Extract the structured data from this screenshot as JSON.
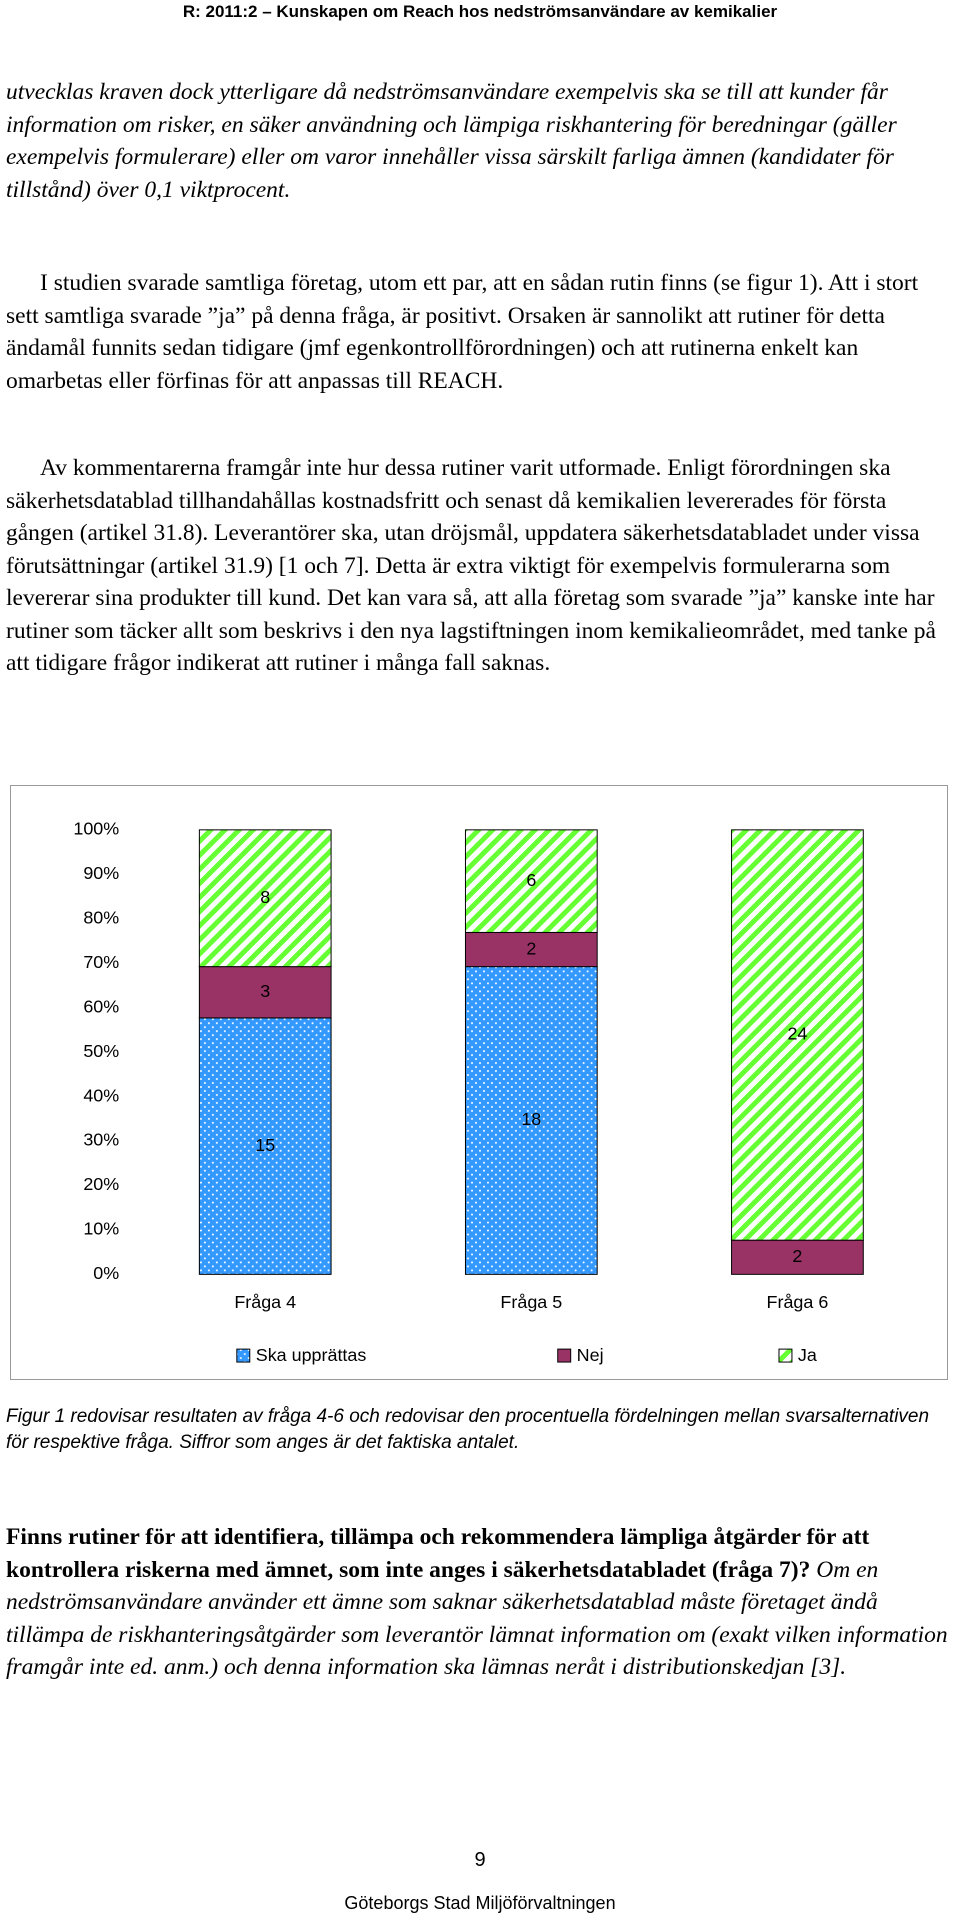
{
  "header": "R: 2011:2 – Kunskapen om Reach hos nedströmsanvändare av kemikalier",
  "paragraphs": [
    "utvecklas kraven dock ytterligare då nedströmsanvändare exempelvis ska se till att kunder får information om risker, en säker användning och lämpiga riskhantering för beredningar (gäller exempelvis formulerare) eller om varor innehåller vissa särskilt farliga ämnen (kandidater för tillstånd) över 0,1 viktprocent.",
    "I studien svarade samtliga företag, utom ett par, att en sådan rutin finns (se figur 1). Att i stort sett samtliga svarade ”ja” på denna fråga, är positivt. Orsaken är sannolikt att rutiner för detta ändamål funnits sedan tidigare (jmf egenkontrollförordningen) och att rutinerna enkelt kan omarbetas eller förfinas för att anpassas till REACH.",
    "Av kommentarerna framgår inte hur dessa rutiner varit utformade. Enligt förordningen ska säkerhetsdatablad tillhandahållas kostnadsfritt och senast då kemikalien levererades för första gången (artikel 31.8). Leverantörer ska, utan dröjsmål, uppdatera säkerhetsdatabladet under vissa förutsättningar (artikel 31.9) [1 och 7]. Detta är extra viktigt för exempelvis formulerarna som levererar sina produkter till kund. Det kan vara så, att alla företag som svarade ”ja” kanske inte har rutiner som täcker allt som beskrivs i den nya lagstiftningen inom kemikalieområdet, med tanke på att tidigare frågor indikerat att rutiner i många fall saknas."
  ],
  "chart_data": {
    "type": "stacked_percent_bar",
    "categories": [
      "Fråga 4",
      "Fråga 5",
      "Fråga 6"
    ],
    "series": [
      {
        "name": "Ska upprättas",
        "color": "#3399ff",
        "pattern": "dots",
        "values": [
          15,
          18,
          0
        ]
      },
      {
        "name": "Nej",
        "color": "#993366",
        "pattern": "solid",
        "values": [
          3,
          2,
          2
        ]
      },
      {
        "name": "Ja",
        "color": "#66ff33",
        "pattern": "stripes",
        "values": [
          8,
          6,
          24
        ]
      }
    ],
    "ylim": [
      0,
      100
    ],
    "yticks": [
      {
        "value": 0,
        "label": "0%"
      },
      {
        "value": 10,
        "label": "10%"
      },
      {
        "value": 20,
        "label": "20%"
      },
      {
        "value": 30,
        "label": "30%"
      },
      {
        "value": 40,
        "label": "40%"
      },
      {
        "value": 50,
        "label": "50%"
      },
      {
        "value": 60,
        "label": "60%"
      },
      {
        "value": 70,
        "label": "70%"
      },
      {
        "value": 80,
        "label": "80%"
      },
      {
        "value": 90,
        "label": "90%"
      },
      {
        "value": 100,
        "label": "100%"
      }
    ],
    "grid": false,
    "legend": "bottom"
  },
  "caption": "Figur 1 redovisar resultaten av fråga 4-6 och redovisar den procentuella fördelningen mellan svarsalternativen för respektive fråga. Siffror som anges är det faktiska antalet.",
  "question": {
    "bold": "Finns rutiner för att identifiera, tillämpa och rekommendera lämpliga åtgärder för att kontrollera riskerna med ämnet, som inte anges i säkerhetsdatabladet (fråga 7)?",
    "italic": "Om en nedströmsanvändare använder ett ämne som saknar säkerhetsdatablad måste företaget ändå tillämpa de riskhanteringsåtgärder som leverantör lämnat information om (exakt vilken information framgår inte ed. anm.) och denna information ska lämnas neråt i distributionskedjan [3]."
  },
  "page_number": "9",
  "footer": "Göteborgs Stad Miljöförvaltningen"
}
